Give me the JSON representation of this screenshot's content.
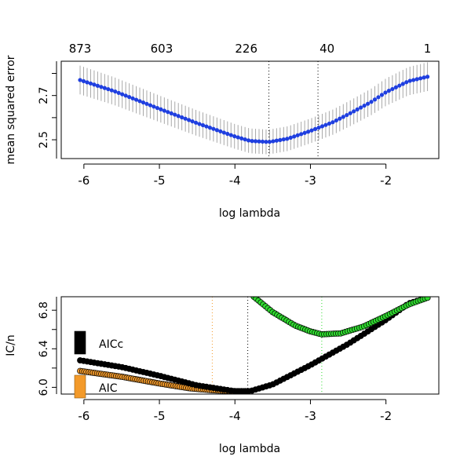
{
  "chart_data": [
    {
      "type": "line",
      "xlabel": "log lambda",
      "ylabel": "mean squared error",
      "xlim": [
        -6.3,
        -1.3
      ],
      "ylim": [
        2.415,
        2.855
      ],
      "x_ticks": [
        -6,
        -5,
        -4,
        -3,
        -2
      ],
      "x_tick_labels": [
        "-6",
        "-5",
        "-4",
        "-3",
        "-2"
      ],
      "y_ticks": [
        2.5,
        2.7
      ],
      "y_tick_labels": [
        "2.5",
        "2.7"
      ],
      "top_axis": {
        "positions": [
          -6.05,
          -4.97,
          -3.85,
          -2.78,
          -1.45
        ],
        "labels": [
          "873",
          "603",
          "226",
          "40",
          "1"
        ]
      },
      "series": [
        {
          "color": "#1f3fe0",
          "x": [
            -6.05,
            -5.6,
            -5.0,
            -4.5,
            -4.0,
            -3.8,
            -3.55,
            -3.3,
            -3.0,
            -2.7,
            -2.5,
            -2.2,
            -2.0,
            -1.7,
            -1.45
          ],
          "y": [
            2.77,
            2.72,
            2.64,
            2.575,
            2.515,
            2.495,
            2.49,
            2.505,
            2.54,
            2.58,
            2.615,
            2.67,
            2.715,
            2.765,
            2.785
          ],
          "error_halfwidth": [
            0.065,
            0.063,
            0.06,
            0.058,
            0.056,
            0.056,
            0.056,
            0.056,
            0.056,
            0.057,
            0.058,
            0.06,
            0.062,
            0.064,
            0.065
          ]
        }
      ],
      "vlines": [
        {
          "x": -3.55,
          "color": "#000000"
        },
        {
          "x": -2.9,
          "color": "#000000"
        }
      ],
      "grid": false
    },
    {
      "type": "scatter",
      "xlabel": "log lambda",
      "ylabel": "IC/n",
      "xlim": [
        -6.3,
        -1.3
      ],
      "ylim": [
        5.93,
        6.94
      ],
      "x_ticks": [
        -6,
        -5,
        -4,
        -3,
        -2
      ],
      "x_tick_labels": [
        "-6",
        "-5",
        "-4",
        "-3",
        "-2"
      ],
      "y_ticks": [
        6.0,
        6.4,
        6.8
      ],
      "y_tick_labels": [
        "6.0",
        "6.4",
        "6.8"
      ],
      "series": [
        {
          "name": "AIC",
          "color": "#f39a2a",
          "x": [
            -6.05,
            -5.5,
            -5.0,
            -4.6,
            -4.3,
            -4.0,
            -3.83
          ],
          "y": [
            6.17,
            6.11,
            6.04,
            5.99,
            5.97,
            5.96,
            5.96
          ]
        },
        {
          "name": "AICc",
          "color": "#000000",
          "x": [
            -6.05,
            -5.5,
            -5.0,
            -4.5,
            -4.0,
            -3.8,
            -3.5,
            -3.0,
            -2.5,
            -2.0,
            -1.7,
            -1.45
          ],
          "y": [
            6.28,
            6.21,
            6.12,
            6.02,
            5.96,
            5.96,
            6.03,
            6.23,
            6.45,
            6.7,
            6.87,
            6.93
          ]
        },
        {
          "color": "#2fdc2f",
          "x": [
            -3.75,
            -3.5,
            -3.2,
            -3.0,
            -2.85,
            -2.6,
            -2.3,
            -2.0,
            -1.7,
            -1.45
          ],
          "y": [
            6.94,
            6.78,
            6.64,
            6.58,
            6.55,
            6.56,
            6.63,
            6.74,
            6.86,
            6.93
          ]
        }
      ],
      "vlines": [
        {
          "x": -4.3,
          "color": "#f39a2a"
        },
        {
          "x": -3.83,
          "color": "#000000"
        },
        {
          "x": -2.85,
          "color": "#2fdc2f"
        }
      ],
      "legend": {
        "placement": "left",
        "entries": [
          {
            "label": "AICc",
            "color": "#000000"
          },
          {
            "label": "AIC",
            "color": "#f39a2a"
          }
        ]
      },
      "grid": false
    }
  ]
}
